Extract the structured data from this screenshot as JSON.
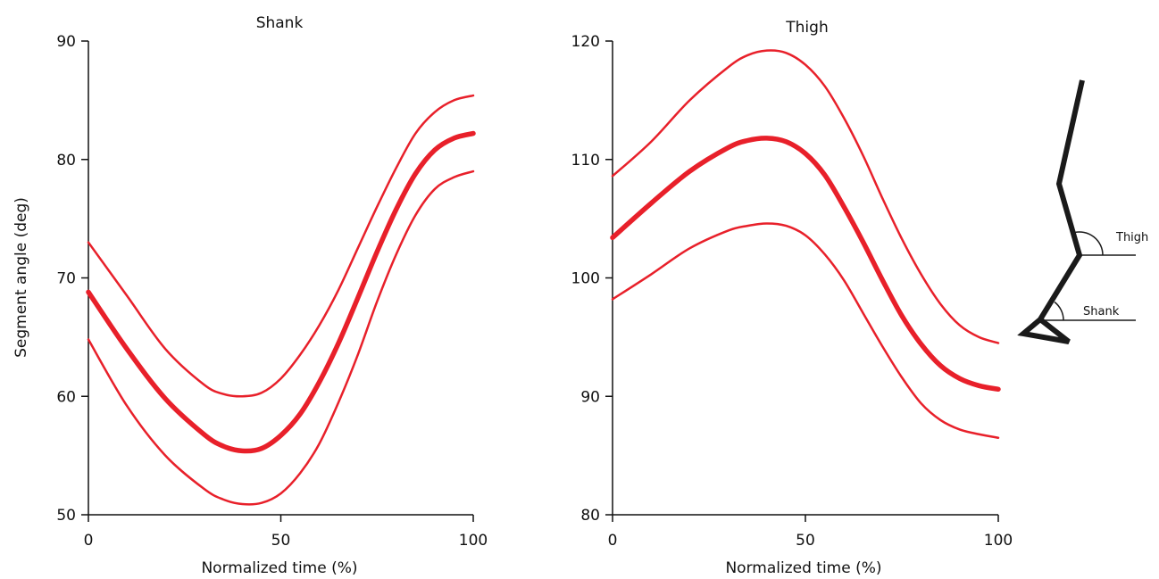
{
  "chart_data": [
    {
      "type": "line",
      "title": "Shank",
      "xlabel": "Normalized time (%)",
      "ylabel": "Segment angle (deg)",
      "xlim": [
        0,
        100
      ],
      "ylim": [
        50,
        90
      ],
      "xticks": [
        "0",
        "50",
        "100"
      ],
      "yticks": [
        "50",
        "60",
        "70",
        "80",
        "90"
      ],
      "grid": false,
      "color": "#e8202a",
      "series": [
        {
          "role": "upper",
          "width": "thin",
          "x": [
            0,
            10,
            20,
            30,
            35,
            40,
            45,
            50,
            55,
            60,
            65,
            70,
            75,
            80,
            85,
            90,
            95,
            100
          ],
          "y": [
            73.0,
            68.5,
            64.0,
            61.0,
            60.2,
            60.0,
            60.3,
            61.5,
            63.5,
            66.0,
            69.0,
            72.5,
            76.0,
            79.3,
            82.2,
            84.0,
            85.0,
            85.4
          ]
        },
        {
          "role": "mean",
          "width": "thick",
          "x": [
            0,
            10,
            20,
            30,
            35,
            40,
            45,
            50,
            55,
            60,
            65,
            70,
            75,
            80,
            85,
            90,
            95,
            100
          ],
          "y": [
            68.8,
            64.0,
            59.8,
            56.8,
            55.8,
            55.4,
            55.6,
            56.7,
            58.5,
            61.2,
            64.5,
            68.3,
            72.2,
            75.8,
            78.8,
            80.8,
            81.8,
            82.2
          ]
        },
        {
          "role": "lower",
          "width": "thin",
          "x": [
            0,
            10,
            20,
            30,
            35,
            40,
            45,
            50,
            55,
            60,
            65,
            70,
            75,
            80,
            85,
            90,
            95,
            100
          ],
          "y": [
            64.8,
            59.2,
            55.0,
            52.2,
            51.3,
            50.9,
            51.0,
            51.8,
            53.5,
            56.0,
            59.5,
            63.5,
            68.0,
            72.0,
            75.3,
            77.5,
            78.5,
            79.0
          ]
        }
      ]
    },
    {
      "type": "line",
      "title": "Thigh",
      "xlabel": "Normalized time (%)",
      "ylabel": "",
      "xlim": [
        0,
        100
      ],
      "ylim": [
        80,
        120
      ],
      "xticks": [
        "0",
        "50",
        "100"
      ],
      "yticks": [
        "80",
        "90",
        "100",
        "110",
        "120"
      ],
      "grid": false,
      "color": "#e8202a",
      "series": [
        {
          "role": "upper",
          "width": "thin",
          "x": [
            0,
            10,
            20,
            30,
            35,
            40,
            45,
            50,
            55,
            60,
            65,
            70,
            75,
            80,
            85,
            90,
            95,
            100
          ],
          "y": [
            108.6,
            111.5,
            115.0,
            117.8,
            118.8,
            119.2,
            119.0,
            118.0,
            116.2,
            113.5,
            110.3,
            106.7,
            103.3,
            100.3,
            97.8,
            96.0,
            95.0,
            94.5
          ]
        },
        {
          "role": "mean",
          "width": "thick",
          "x": [
            0,
            10,
            20,
            30,
            35,
            40,
            45,
            50,
            55,
            60,
            65,
            70,
            75,
            80,
            85,
            90,
            95,
            100
          ],
          "y": [
            103.4,
            106.3,
            109.0,
            111.0,
            111.6,
            111.8,
            111.5,
            110.5,
            108.7,
            106.0,
            103.0,
            99.8,
            96.8,
            94.4,
            92.6,
            91.5,
            90.9,
            90.6
          ]
        },
        {
          "role": "lower",
          "width": "thin",
          "x": [
            0,
            10,
            20,
            30,
            35,
            40,
            45,
            50,
            55,
            60,
            65,
            70,
            75,
            80,
            85,
            90,
            95,
            100
          ],
          "y": [
            98.2,
            100.3,
            102.5,
            104.0,
            104.4,
            104.6,
            104.4,
            103.6,
            102.0,
            99.8,
            97.0,
            94.2,
            91.6,
            89.4,
            88.0,
            87.2,
            86.8,
            86.5
          ]
        }
      ]
    }
  ],
  "diagram": {
    "thigh_label": "Thigh",
    "shank_label": "Shank",
    "stroke_color": "#1a1a1a"
  }
}
